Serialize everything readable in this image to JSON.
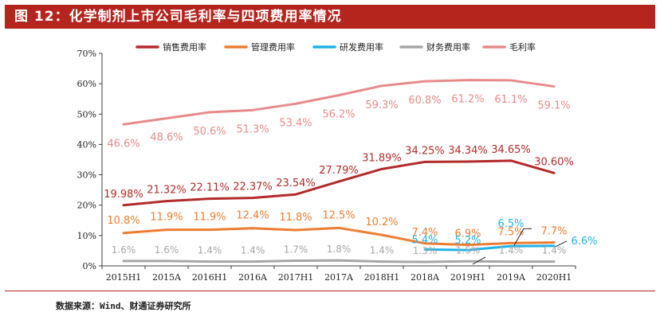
{
  "title": "图 12：化学制剂上市公司毛利率与四项费用率情况",
  "source": "数据来源：Wind、财通证券研究所",
  "chart_data": {
    "type": "line",
    "categories": [
      "2015H1",
      "2015A",
      "2016H1",
      "2016A",
      "2017H1",
      "2017A",
      "2018H1",
      "2018A",
      "2019H1",
      "2019A",
      "2020H1"
    ],
    "y_ticks": [
      "0%",
      "10%",
      "20%",
      "30%",
      "40%",
      "50%",
      "60%",
      "70%"
    ],
    "ylim": [
      0,
      70
    ],
    "legend_position": "top",
    "series": [
      {
        "name": "销售费用率",
        "color": "#b22a2a",
        "values": [
          19.98,
          21.32,
          22.11,
          22.37,
          23.54,
          27.79,
          31.89,
          34.25,
          34.34,
          34.65,
          30.6
        ],
        "labels": [
          "19.98%",
          "21.32%",
          "22.11%",
          "22.37%",
          "23.54%",
          "27.79%",
          "31.89%",
          "34.25%",
          "34.34%",
          "34.65%",
          "30.60%"
        ]
      },
      {
        "name": "管理费用率",
        "color": "#ed7d31",
        "values": [
          10.8,
          11.9,
          11.9,
          12.4,
          11.8,
          12.5,
          10.2,
          7.4,
          6.9,
          7.5,
          7.7
        ],
        "labels": [
          "10.8%",
          "11.9%",
          "11.9%",
          "12.4%",
          "11.8%",
          "12.5%",
          "10.2%",
          "7.4%",
          "6.9%",
          "7.5%",
          "7.7%"
        ]
      },
      {
        "name": "研发费用率",
        "color": "#1fb3e8",
        "values": [
          null,
          null,
          null,
          null,
          null,
          null,
          null,
          5.4,
          5.2,
          6.5,
          6.6
        ],
        "labels": [
          "",
          "",
          "",
          "",
          "",
          "",
          "",
          "5.4%",
          "5.2%",
          "6.5%",
          "6.6%"
        ]
      },
      {
        "name": "财务费用率",
        "color": "#a6a6a6",
        "values": [
          1.6,
          1.6,
          1.4,
          1.4,
          1.7,
          1.8,
          1.4,
          1.3,
          1.5,
          1.4,
          1.4
        ],
        "labels": [
          "1.6%",
          "1.6%",
          "1.4%",
          "1.4%",
          "1.7%",
          "1.8%",
          "1.4%",
          "1.3%",
          "1.5%",
          "1.4%",
          "1.4%"
        ]
      },
      {
        "name": "毛利率",
        "color": "#e88a8a",
        "values": [
          46.6,
          48.6,
          50.6,
          51.3,
          53.4,
          56.2,
          59.3,
          60.8,
          61.2,
          61.1,
          59.1
        ],
        "labels": [
          "46.6%",
          "48.6%",
          "50.6%",
          "51.3%",
          "53.4%",
          "56.2%",
          "59.3%",
          "60.8%",
          "61.2%",
          "61.1%",
          "59.1%"
        ]
      }
    ]
  }
}
